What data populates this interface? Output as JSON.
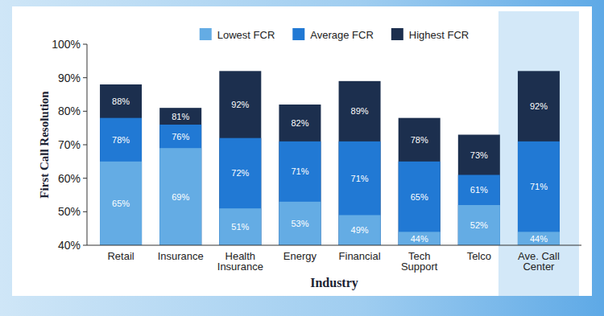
{
  "chart_data": {
    "type": "bar",
    "x_label": "Industry",
    "y_label": "First Call Resolution",
    "categories": [
      "Retail",
      "Insurance",
      "Health Insurance",
      "Energy",
      "Financial",
      "Tech Support",
      "Telco",
      "Ave. Call Center"
    ],
    "series": [
      {
        "name": "Lowest FCR",
        "color": "#64ace4",
        "values": [
          65,
          69,
          51,
          53,
          49,
          44,
          52,
          44
        ],
        "value_labels": [
          "65%",
          "69%",
          "51%",
          "53%",
          "49%",
          "44%",
          "52%",
          "44%"
        ]
      },
      {
        "name": "Average FCR",
        "color": "#2179d4",
        "values": [
          78,
          76,
          72,
          71,
          71,
          65,
          61,
          71
        ],
        "value_labels": [
          "78%",
          "76%",
          "72%",
          "71%",
          "71%",
          "65%",
          "61%",
          "71%"
        ]
      },
      {
        "name": "Highest FCR",
        "color": "#1c2f4e",
        "values": [
          88,
          81,
          92,
          82,
          89,
          78,
          73,
          92
        ],
        "value_labels": [
          "88%",
          "81%",
          "92%",
          "82%",
          "89%",
          "78%",
          "73%",
          "92%"
        ]
      }
    ],
    "ylim": [
      40,
      100
    ],
    "yticks": [
      {
        "value": 40,
        "label": "40%"
      },
      {
        "value": 50,
        "label": "50%"
      },
      {
        "value": 60,
        "label": "60%"
      },
      {
        "value": 70,
        "label": "70%"
      },
      {
        "value": 80,
        "label": "80%"
      },
      {
        "value": 90,
        "label": "90%"
      },
      {
        "value": 100,
        "label": "100%"
      }
    ],
    "grid": false,
    "legend": "top",
    "data_labels": true
  }
}
